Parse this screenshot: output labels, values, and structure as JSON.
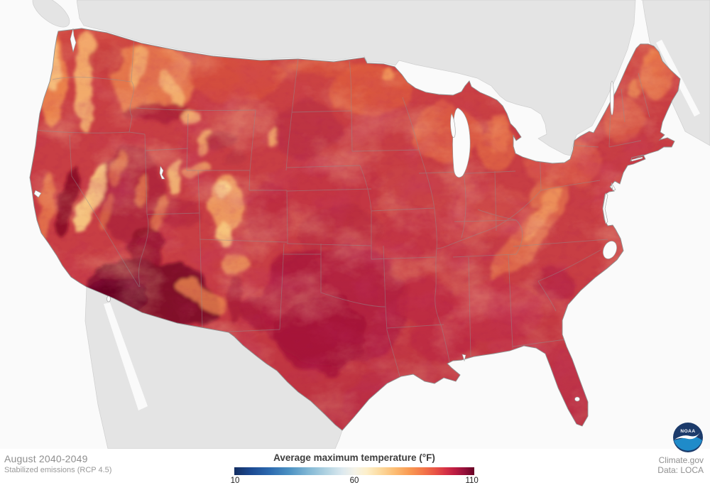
{
  "annotation": {
    "period": "August 2040-2049",
    "scenario": "Stabilized emissions (RCP 4.5)"
  },
  "legend": {
    "title": "Average maximum temperature (°F)",
    "ticks": [
      "10",
      "60",
      "110"
    ],
    "gradient_stops": [
      [
        "0%",
        "#142e62"
      ],
      [
        "7%",
        "#1c4a92"
      ],
      [
        "15%",
        "#2d6bb0"
      ],
      [
        "23%",
        "#4c92c3"
      ],
      [
        "31%",
        "#82b8d5"
      ],
      [
        "39%",
        "#b5d5e3"
      ],
      [
        "45%",
        "#dce9ef"
      ],
      [
        "50%",
        "#f4f2e8"
      ],
      [
        "55%",
        "#fdf0cb"
      ],
      [
        "61%",
        "#fcd99d"
      ],
      [
        "67%",
        "#fcbc72"
      ],
      [
        "73%",
        "#f99a52"
      ],
      [
        "79%",
        "#f37549"
      ],
      [
        "84%",
        "#e85245"
      ],
      [
        "88%",
        "#d63246"
      ],
      [
        "92%",
        "#bb1c42"
      ],
      [
        "96%",
        "#94103a"
      ],
      [
        "100%",
        "#670124"
      ]
    ]
  },
  "credits": {
    "site": "Climate.gov",
    "data_source": "Data: LOCA",
    "logo_text": "NOAA"
  },
  "map_colors": {
    "ocean": "#fafafa",
    "land_other": "#e4e4e4",
    "state_border": "#8f8f8f",
    "us_base": "#c83e44"
  }
}
